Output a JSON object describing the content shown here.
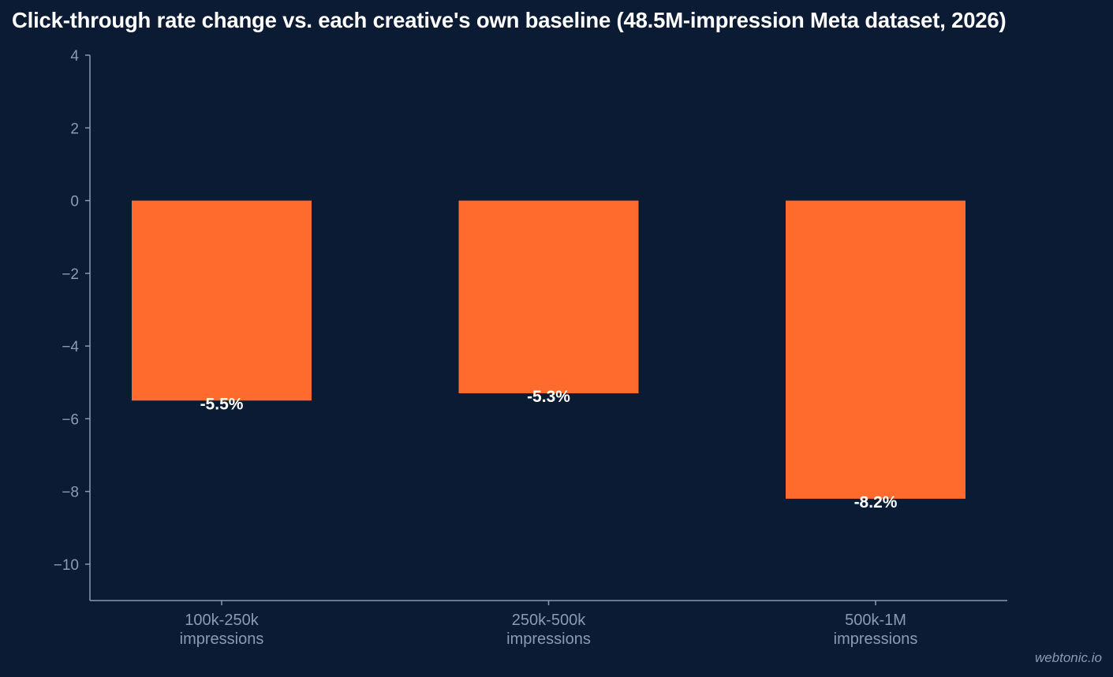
{
  "chart_data": {
    "type": "bar",
    "title": "Click-through rate change vs. each creative's own baseline (48.5M-impression Meta dataset, 2026)",
    "xlabel": "",
    "ylabel": "",
    "categories": [
      [
        "100k-250k",
        "impressions"
      ],
      [
        "250k-500k",
        "impressions"
      ],
      [
        "500k-1M",
        "impressions"
      ]
    ],
    "values": [
      -5.5,
      -5.3,
      -8.2
    ],
    "data_labels": [
      "-5.5%",
      "-5.3%",
      "-8.2%"
    ],
    "ylim": [
      -11,
      4
    ],
    "yticks": [
      4,
      2,
      0,
      -2,
      -4,
      -6,
      -8,
      -10
    ],
    "ytick_labels": [
      "4",
      "2",
      "0",
      "−2",
      "−4",
      "−6",
      "−8",
      "−10"
    ],
    "grid": false,
    "legend": "none",
    "bar_color": "#ff6b2c",
    "axis_color": "#8d9ab0",
    "background": "#0b1b33"
  },
  "watermark": "webtonic.io"
}
